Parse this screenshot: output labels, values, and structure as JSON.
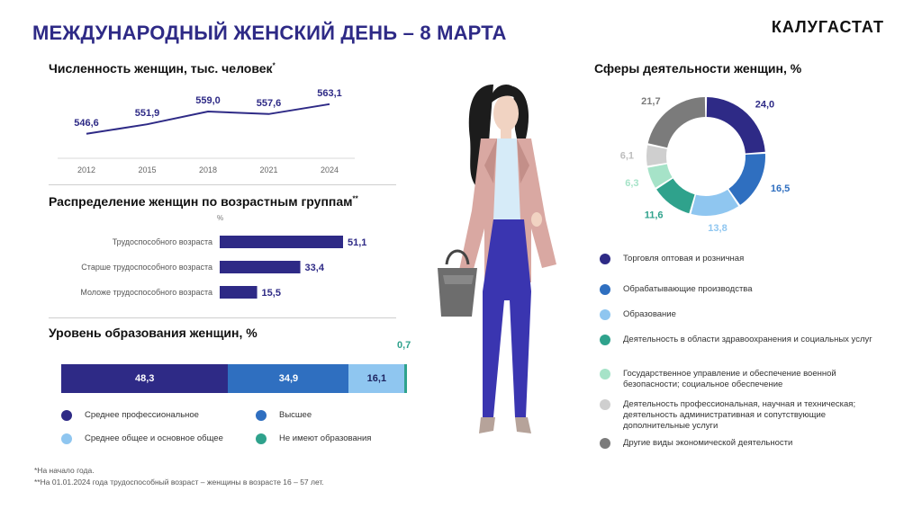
{
  "title": "МЕЖДУНАРОДНЫЙ  ЖЕНСКИЙ ДЕНЬ – 8 МАРТА",
  "brand": "КАЛУГАСТАТ",
  "population": {
    "heading": "Численность женщин, тыс. человек",
    "heading_mark": "*"
  },
  "age": {
    "heading": "Распределение женщин по возрастным группам",
    "heading_mark": "**",
    "unit": "%"
  },
  "education": {
    "heading": "Уровень образования женщин, %",
    "legend": [
      {
        "label": "Среднее профессиональное",
        "color": "#2e2a86"
      },
      {
        "label": "Высшее",
        "color": "#2f6fc0"
      },
      {
        "label": "Среднее общее и основное общее",
        "color": "#8fc6f0"
      },
      {
        "label": "Не имеют образования",
        "color": "#2fa28c"
      }
    ]
  },
  "spheres": {
    "heading": "Сферы деятельности женщин, %",
    "legend": [
      {
        "label": "Торговля  оптовая  и  розничная",
        "color": "#2e2a86"
      },
      {
        "label": "Обрабатывающие  производства",
        "color": "#2f6fc0"
      },
      {
        "label": "Образование",
        "color": "#8fc6f0"
      },
      {
        "label": "Деятельность  в  области  здравоохранения и  социальных  услуг",
        "color": "#2fa28c"
      },
      {
        "label": "Государственное  управление  и  обеспечение военной  безопасности;   социальное  обеспечение",
        "color": "#a6e3c8"
      },
      {
        "label": "Деятельность  профессиональная,  научная  и  техническая; деятельность  административная  и  сопутствующие дополнительные  услуги",
        "color": "#cfcfcf"
      },
      {
        "label": "Другие  виды  экономической  деятельности",
        "color": "#7b7b7b"
      }
    ]
  },
  "notes": {
    "n1": "*На начало года.",
    "n2": "**На 01.01.2024  года трудоспособный  возраст – женщины в возрасте  16 – 57 лет."
  },
  "chart_data": [
    {
      "type": "line",
      "title": "Численность женщин, тыс. человек",
      "x": [
        "2012",
        "2015",
        "2018",
        "2021",
        "2024"
      ],
      "series": [
        {
          "values": [
            546.6,
            551.9,
            559.0,
            557.6,
            563.1
          ]
        }
      ],
      "value_labels": [
        "546,6",
        "551,9",
        "559,0",
        "557,6",
        "563,1"
      ],
      "color": "#2e2a86",
      "ylim": [
        540,
        566
      ]
    },
    {
      "type": "bar",
      "orientation": "horizontal",
      "title": "Распределение женщин по возрастным группам",
      "categories": [
        "Трудоспособного  возраста",
        "Старше  трудоспособного  возраста",
        "Моложе  трудоспособного  возраста"
      ],
      "values": [
        51.1,
        33.4,
        15.5
      ],
      "value_labels": [
        "51,1",
        "33,4",
        "15,5"
      ],
      "color": "#2e2a86",
      "xlim": [
        0,
        60
      ]
    },
    {
      "type": "bar",
      "stacked": true,
      "orientation": "horizontal",
      "title": "Уровень образования женщин, %",
      "categories": [
        "Среднее профессиональное",
        "Высшее",
        "Среднее общее и основное общее",
        "Не имеют образования"
      ],
      "values": [
        48.3,
        34.9,
        16.1,
        0.7
      ],
      "value_labels": [
        "48,3",
        "34,9",
        "16,1",
        "0,7"
      ],
      "colors": [
        "#2e2a86",
        "#2f6fc0",
        "#8fc6f0",
        "#2fa28c"
      ]
    },
    {
      "type": "pie",
      "donut": true,
      "title": "Сферы деятельности женщин, %",
      "categories": [
        "Торговля оптовая и розничная",
        "Обрабатывающие производства",
        "Образование",
        "Деятельность в области здравоохранения и социальных услуг",
        "Государственное управление и обеспечение военной безопасности; социальное обеспечение",
        "Деятельность профессиональная, научная и техническая; деятельность административная и сопутствующие дополнительные услуги",
        "Другие виды экономической деятельности"
      ],
      "values": [
        24.0,
        16.5,
        13.8,
        11.6,
        6.3,
        6.1,
        21.7
      ],
      "value_labels": [
        "24,0",
        "16,5",
        "13,8",
        "11,6",
        "6,3",
        "6,1",
        "21,7"
      ],
      "label_colors": [
        "#2e2a86",
        "#2f6fc0",
        "#8fc6f0",
        "#2fa28c",
        "#a6e3c8",
        "#bdbdbd",
        "#7b7b7b"
      ],
      "colors": [
        "#2e2a86",
        "#2f6fc0",
        "#8fc6f0",
        "#2fa28c",
        "#a6e3c8",
        "#cfcfcf",
        "#7b7b7b"
      ]
    }
  ]
}
